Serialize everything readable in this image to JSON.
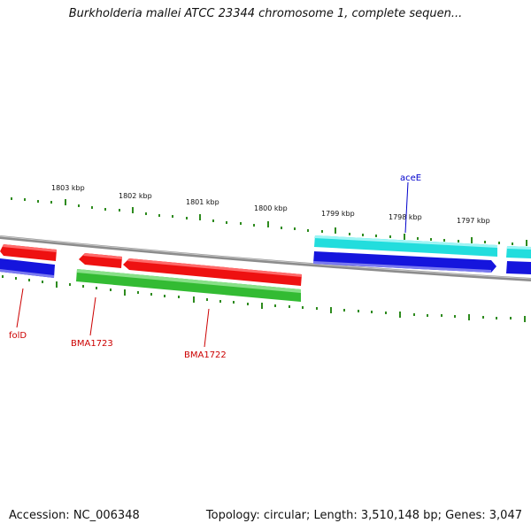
{
  "title": "Burkholderia mallei ATCC 23344 chromosome 1, complete sequen...",
  "footer": {
    "accession": "Accession: NC_006348",
    "summary": "Topology: circular; Length: 3,510,148 bp; Genes: 3,047"
  },
  "scale_labels": [
    "1803 kbp",
    "1802 kbp",
    "1801 kbp",
    "1800 kbp",
    "1799 kbp",
    "1798 kbp",
    "1797 kbp"
  ],
  "gene_labels": {
    "folD": "folD",
    "BMA1723": "BMA1723",
    "BMA1722": "BMA1722",
    "aceE": "aceE"
  },
  "colors": {
    "backbone": "#8c8c8c",
    "tick": "#2e8b1e",
    "red_gene": "#ee1111",
    "blue_gene": "#1515dd",
    "green_gene": "#33bb33",
    "cyan_gene": "#22dddd",
    "red_label": "#cc0000",
    "blue_label": "#0000cc"
  }
}
